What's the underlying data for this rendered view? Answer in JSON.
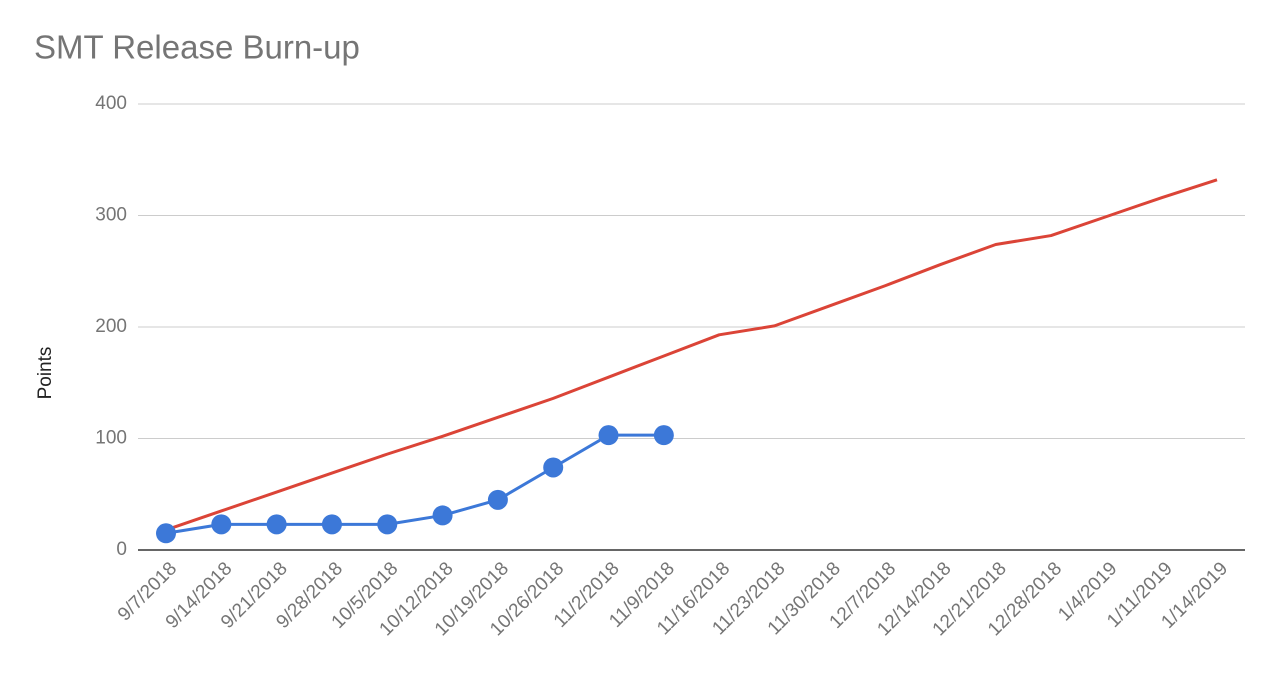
{
  "chart_data": {
    "type": "line",
    "title": "SMT Release Burn-up",
    "y_label": "Points",
    "categories": [
      "9/7/2018",
      "9/14/2018",
      "9/21/2018",
      "9/28/2018",
      "10/5/2018",
      "10/12/2018",
      "10/19/2018",
      "10/26/2018",
      "11/2/2018",
      "11/9/2018",
      "11/16/2018",
      "11/23/2018",
      "11/30/2018",
      "12/7/2018",
      "12/14/2018",
      "12/21/2018",
      "12/28/2018",
      "1/4/2019",
      "1/11/2019",
      "1/14/2019"
    ],
    "series": [
      {
        "color": "#db4437",
        "markers": false,
        "values": [
          18,
          35,
          52,
          69,
          86,
          102,
          119,
          136,
          155,
          174,
          193,
          201,
          219,
          237,
          256,
          274,
          282,
          299,
          316,
          332
        ]
      },
      {
        "color": "#3c78d8",
        "markers": true,
        "values": [
          15,
          23,
          23,
          23,
          23,
          31,
          45,
          74,
          103,
          103,
          null,
          null,
          null,
          null,
          null,
          null,
          null,
          null,
          null,
          null
        ]
      }
    ],
    "ylim": [
      0,
      400
    ],
    "yticks": [
      0,
      100,
      200,
      300,
      400
    ],
    "grid": true
  }
}
